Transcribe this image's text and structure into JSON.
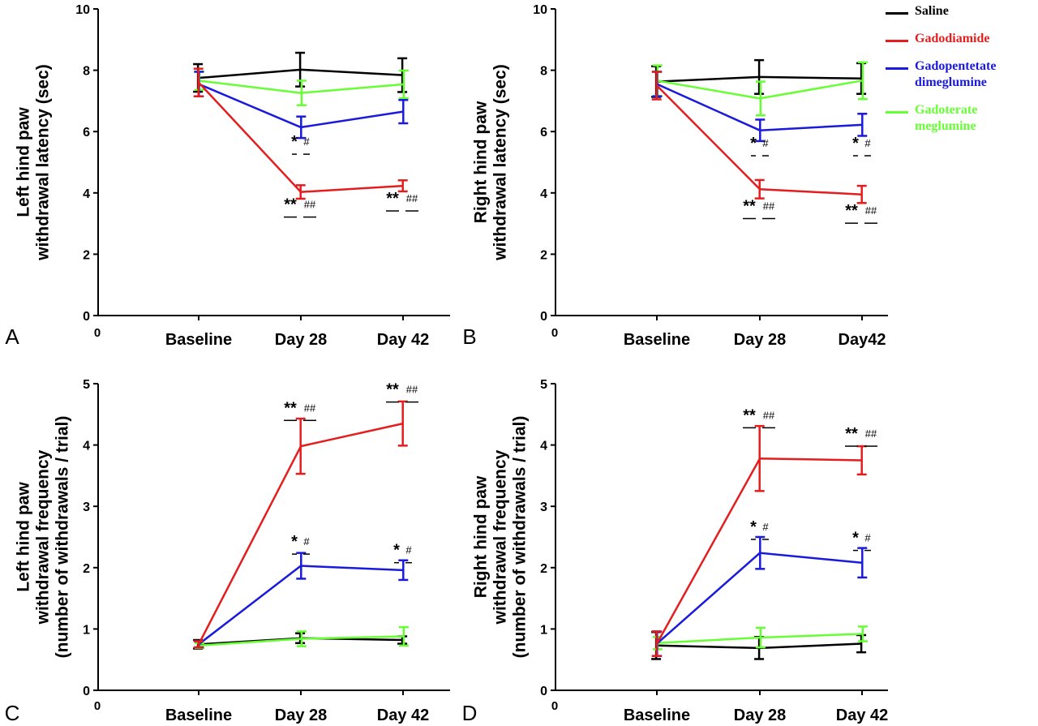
{
  "legend": {
    "items": [
      {
        "label": "Saline",
        "color": "#000000"
      },
      {
        "label": "Gadodiamide",
        "color": "#e41e1e"
      },
      {
        "label": "Gadopentetate dimeglumine",
        "color": "#1a1adc"
      },
      {
        "label": "Gadoterate meglumine",
        "color": "#66ff33"
      }
    ]
  },
  "chart_data": [
    {
      "type": "line",
      "panel": "A",
      "ylabel": [
        "Left hind paw",
        "withdrawal latency (sec)"
      ],
      "x_origin_label": "0",
      "categories": [
        "Baseline",
        "Day 28",
        "Day 42"
      ],
      "ylim": [
        0,
        10
      ],
      "yticks": [
        0,
        2,
        4,
        6,
        8,
        10
      ],
      "series": [
        {
          "name": "Saline",
          "color": "#000000",
          "values": [
            7.75,
            8.02,
            7.84
          ],
          "errors": [
            0.45,
            0.55,
            0.55
          ]
        },
        {
          "name": "Gadodiamide",
          "color": "#e41e1e",
          "values": [
            7.6,
            4.03,
            4.23
          ],
          "errors": [
            0.45,
            0.22,
            0.18
          ]
        },
        {
          "name": "Gadopentetate dimeglumine",
          "color": "#1a1adc",
          "values": [
            7.55,
            6.14,
            6.65
          ],
          "errors": [
            0.4,
            0.35,
            0.38
          ]
        },
        {
          "name": "Gadoterate meglumine",
          "color": "#66ff33",
          "values": [
            7.66,
            7.26,
            7.54
          ],
          "errors": [
            0.3,
            0.4,
            0.45
          ]
        }
      ],
      "annotations": [
        {
          "category": 1,
          "y": 5.5,
          "stars": "*",
          "hashes": "#"
        },
        {
          "category": 1,
          "y": 3.45,
          "stars": "**",
          "hashes": "##"
        },
        {
          "category": 2,
          "y": 3.65,
          "stars": "**",
          "hashes": "##"
        }
      ]
    },
    {
      "type": "line",
      "panel": "B",
      "ylabel": [
        "Right hind paw",
        "withdrawal latency (sec)"
      ],
      "x_origin_label": "0",
      "categories": [
        "Baseline",
        "Day 28",
        "Day42"
      ],
      "ylim": [
        0,
        10
      ],
      "yticks": [
        0,
        2,
        4,
        6,
        8,
        10
      ],
      "series": [
        {
          "name": "Saline",
          "color": "#000000",
          "values": [
            7.63,
            7.78,
            7.73
          ],
          "errors": [
            0.5,
            0.55,
            0.5
          ]
        },
        {
          "name": "Gadodiamide",
          "color": "#e41e1e",
          "values": [
            7.5,
            4.12,
            3.95
          ],
          "errors": [
            0.45,
            0.3,
            0.28
          ]
        },
        {
          "name": "Gadopentetate dimeglumine",
          "color": "#1a1adc",
          "values": [
            7.55,
            6.04,
            6.22
          ],
          "errors": [
            0.4,
            0.35,
            0.36
          ]
        },
        {
          "name": "Gadoterate meglumine",
          "color": "#66ff33",
          "values": [
            7.66,
            7.08,
            7.66
          ],
          "errors": [
            0.5,
            0.55,
            0.6
          ]
        }
      ],
      "annotations": [
        {
          "category": 1,
          "y": 5.45,
          "stars": "*",
          "hashes": "#"
        },
        {
          "category": 2,
          "y": 5.45,
          "stars": "*",
          "hashes": "#"
        },
        {
          "category": 1,
          "y": 3.4,
          "stars": "**",
          "hashes": "##"
        },
        {
          "category": 2,
          "y": 3.25,
          "stars": "**",
          "hashes": "##"
        }
      ]
    },
    {
      "type": "line",
      "panel": "C",
      "ylabel": [
        "Left hind paw",
        "withdrawal frequency",
        "(number of withdrawals / trial)"
      ],
      "x_origin_label": "0",
      "categories": [
        "Baseline",
        "Day 28",
        "Day 42"
      ],
      "ylim": [
        0,
        5
      ],
      "yticks": [
        0,
        1,
        2,
        3,
        4,
        5
      ],
      "series": [
        {
          "name": "Saline",
          "color": "#000000",
          "values": [
            0.75,
            0.85,
            0.82
          ],
          "errors": [
            0.07,
            0.08,
            0.06
          ]
        },
        {
          "name": "Gadodiamide",
          "color": "#e41e1e",
          "values": [
            0.75,
            3.98,
            4.35
          ],
          "errors": [
            0.05,
            0.45,
            0.36
          ]
        },
        {
          "name": "Gadopentetate dimeglumine",
          "color": "#1a1adc",
          "values": [
            0.75,
            2.03,
            1.96
          ],
          "errors": [
            0.05,
            0.21,
            0.16
          ]
        },
        {
          "name": "Gadoterate meglumine",
          "color": "#66ff33",
          "values": [
            0.73,
            0.84,
            0.88
          ],
          "errors": [
            0.04,
            0.12,
            0.15
          ]
        }
      ],
      "annotations": [
        {
          "category": 1,
          "y": 4.52,
          "stars": "**",
          "hashes": "##"
        },
        {
          "category": 2,
          "y": 4.82,
          "stars": "**",
          "hashes": "##"
        },
        {
          "category": 1,
          "y": 2.34,
          "stars": "*",
          "hashes": "#"
        },
        {
          "category": 2,
          "y": 2.2,
          "stars": "*",
          "hashes": "#"
        }
      ]
    },
    {
      "type": "line",
      "panel": "D",
      "ylabel": [
        "Right hind paw",
        "withdrawal frequency",
        "(number of withdrawals / trial)"
      ],
      "x_origin_label": "0",
      "categories": [
        "Baseline",
        "Day 28",
        "Day 42"
      ],
      "ylim": [
        0,
        5
      ],
      "yticks": [
        0,
        1,
        2,
        3,
        4,
        5
      ],
      "series": [
        {
          "name": "Saline",
          "color": "#000000",
          "values": [
            0.73,
            0.69,
            0.76
          ],
          "errors": [
            0.22,
            0.18,
            0.14
          ]
        },
        {
          "name": "Gadodiamide",
          "color": "#e41e1e",
          "values": [
            0.76,
            3.78,
            3.75
          ],
          "errors": [
            0.2,
            0.53,
            0.23
          ]
        },
        {
          "name": "Gadopentetate dimeglumine",
          "color": "#1a1adc",
          "values": [
            0.76,
            2.24,
            2.08
          ],
          "errors": [
            0.2,
            0.26,
            0.24
          ]
        },
        {
          "name": "Gadoterate meglumine",
          "color": "#66ff33",
          "values": [
            0.77,
            0.86,
            0.92
          ],
          "errors": [
            0.1,
            0.16,
            0.12
          ]
        }
      ],
      "annotations": [
        {
          "category": 1,
          "y": 4.4,
          "stars": "**",
          "hashes": "##"
        },
        {
          "category": 2,
          "y": 4.1,
          "stars": "**",
          "hashes": "##"
        },
        {
          "category": 1,
          "y": 2.58,
          "stars": "*",
          "hashes": "#"
        },
        {
          "category": 2,
          "y": 2.4,
          "stars": "*",
          "hashes": "#"
        }
      ]
    }
  ]
}
